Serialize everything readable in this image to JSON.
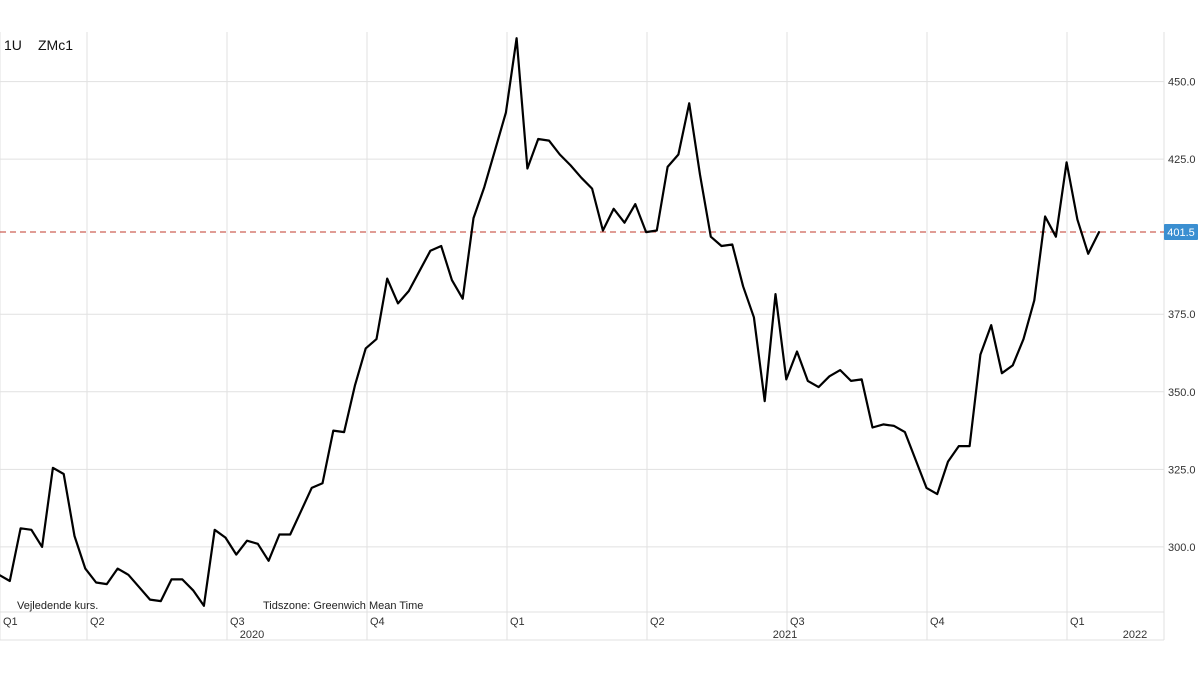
{
  "header": {
    "interval": "1U",
    "symbol": "ZMc1"
  },
  "footnote": {
    "indicative": "Vejledende kurs.",
    "timezone": "Tidszone: Greenwich Mean Time"
  },
  "current_price_label": "401.5",
  "colors": {
    "line": "#000000",
    "grid": "#e1e1e1",
    "ref_line": "#c0392b",
    "price_badge": "#3b8fd1"
  },
  "chart_data": {
    "type": "line",
    "series": [
      {
        "values": [
          291,
          289,
          306,
          305.5,
          300,
          325.5,
          323.5,
          303.5,
          293,
          288.5,
          288,
          293,
          291,
          287,
          283,
          282.5,
          289.5,
          289.5,
          286,
          281,
          305.5,
          303,
          297.5,
          302,
          301,
          295.5,
          304,
          304,
          311.5,
          319,
          320.5,
          337.5,
          337,
          352,
          364,
          367,
          386.5,
          378.5,
          382.5,
          389,
          395.5,
          397,
          386,
          380,
          406,
          416,
          428,
          440,
          464,
          422,
          431.5,
          431,
          426.5,
          423,
          419,
          415.5,
          402,
          409,
          404.5,
          410.5,
          401.5,
          402,
          422.5,
          426.5,
          443,
          420,
          400,
          397,
          397.5,
          384,
          374,
          347,
          381.5,
          354,
          363,
          353.5,
          351.5,
          355,
          357,
          353.5,
          354,
          338.5,
          339.5,
          339,
          337,
          328,
          319,
          317,
          327.5,
          332.5,
          332.5,
          362,
          371.5,
          356,
          358.5,
          367,
          379.5,
          406.5,
          400,
          424,
          405.5,
          394.5,
          401.5
        ]
      }
    ],
    "y_ticks": [
      "450.0",
      "425.0",
      "401.5",
      "375.0",
      "350.0",
      "325.0",
      "300.0"
    ],
    "y_tick_values": [
      450,
      425,
      375,
      350,
      325,
      300
    ],
    "ylim": [
      279,
      466
    ],
    "reference_line": 401.5,
    "quarter_labels": [
      "Q1",
      "Q2",
      "Q3",
      "Q4",
      "Q1",
      "Q2",
      "Q3",
      "Q4",
      "Q1"
    ],
    "year_labels": [
      "2020",
      "2021",
      "2022"
    ],
    "grid": true
  }
}
